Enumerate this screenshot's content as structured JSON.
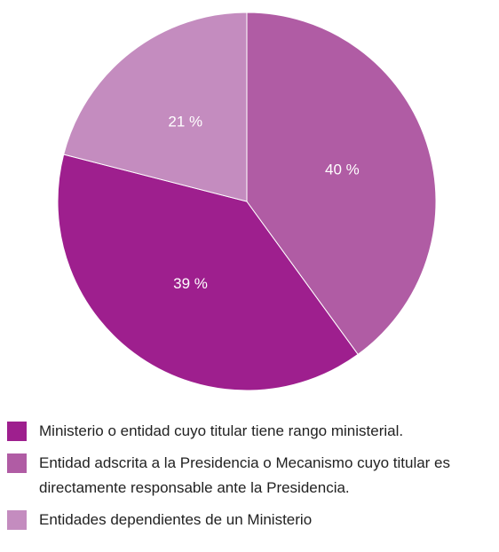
{
  "chart_data": {
    "type": "pie",
    "categories": [
      "Ministerio o entidad cuyo titular tiene rango ministerial.",
      "Entidad adscrita a la Presidencia o Mecanismo cuyo titular es directamente responsable ante la Presidencia.",
      "Entidades dependientes de un Ministerio"
    ],
    "values": [
      39,
      40,
      21
    ],
    "value_labels": [
      "39 %",
      "40 %",
      "21 %"
    ],
    "colors": [
      "#9e1f8e",
      "#b05ca4",
      "#c48cbf"
    ],
    "legend": "bottom"
  }
}
